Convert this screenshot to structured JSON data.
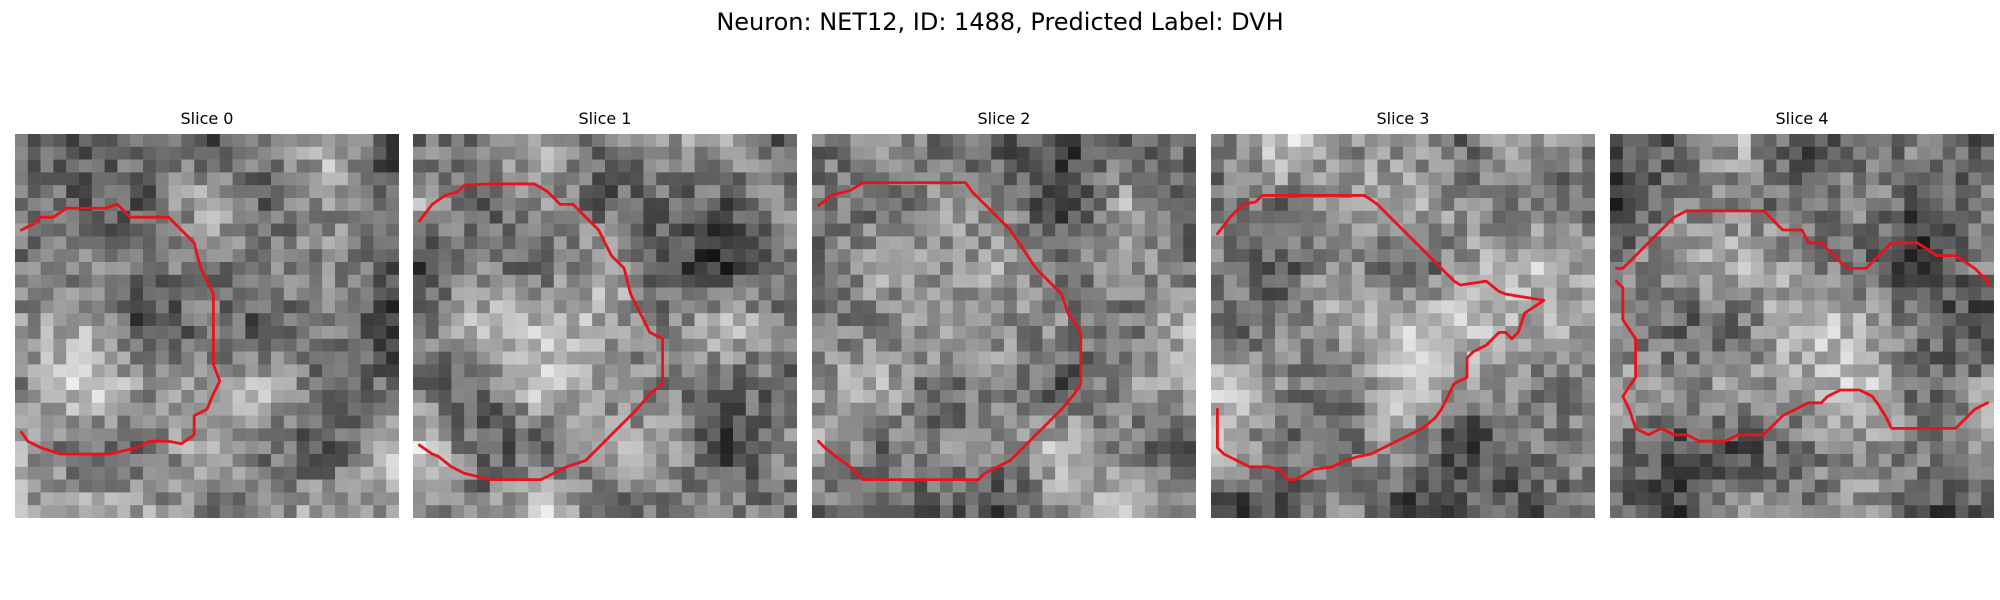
{
  "figure": {
    "title": "Neuron: NET12, ID: 1488, Predicted Label: DVH"
  },
  "image_grid": {
    "rows": 30,
    "cols": 30,
    "colormap": "grayscale",
    "content": "noisy grayscale electron-microscopy cell crops"
  },
  "contour_color": "#e8131b",
  "slices": [
    {
      "label": "Slice 0",
      "seed": 11,
      "contour": [
        [
          0.5,
          7.5
        ],
        [
          1.5,
          7
        ],
        [
          2,
          6.5
        ],
        [
          3,
          6.5
        ],
        [
          4,
          5.8
        ],
        [
          5,
          5.8
        ],
        [
          6,
          5.8
        ],
        [
          7,
          5.8
        ],
        [
          8,
          5.5
        ],
        [
          9,
          6.5
        ],
        [
          10,
          6.5
        ],
        [
          12,
          6.5
        ],
        [
          13,
          7.5
        ],
        [
          14,
          8.5
        ],
        [
          14.5,
          10.5
        ],
        [
          15.5,
          12.5
        ],
        [
          15.5,
          18
        ],
        [
          16,
          19.3
        ],
        [
          15.5,
          20.3
        ],
        [
          15,
          21.5
        ],
        [
          14,
          22
        ],
        [
          14,
          23.5
        ],
        [
          13,
          24.2
        ],
        [
          12,
          24
        ],
        [
          10.5,
          24
        ],
        [
          9.5,
          24.5
        ],
        [
          7.5,
          25
        ],
        [
          5,
          25
        ],
        [
          3.5,
          25
        ],
        [
          2,
          24.5
        ],
        [
          1,
          24
        ],
        [
          0.5,
          23.3
        ]
      ]
    },
    {
      "label": "Slice 1",
      "seed": 23,
      "contour": [
        [
          0.5,
          6.8
        ],
        [
          1.5,
          5.5
        ],
        [
          2.5,
          4.8
        ],
        [
          3.5,
          4.5
        ],
        [
          4,
          4
        ],
        [
          6,
          3.9
        ],
        [
          9.5,
          3.9
        ],
        [
          10.5,
          4.5
        ],
        [
          11.5,
          5.5
        ],
        [
          12.5,
          5.5
        ],
        [
          13.5,
          6.5
        ],
        [
          14.5,
          7.5
        ],
        [
          15.5,
          9.5
        ],
        [
          16.5,
          10.5
        ],
        [
          17,
          12.5
        ],
        [
          18,
          14.5
        ],
        [
          18.5,
          15.5
        ],
        [
          19.5,
          16
        ],
        [
          19.5,
          19.5
        ],
        [
          18.5,
          20.3
        ],
        [
          17.5,
          21.5
        ],
        [
          16.5,
          22.5
        ],
        [
          15.5,
          23.5
        ],
        [
          14.5,
          24.5
        ],
        [
          13.5,
          25.5
        ],
        [
          12,
          26
        ],
        [
          11,
          26.5
        ],
        [
          10,
          27
        ],
        [
          8,
          27
        ],
        [
          6,
          27
        ],
        [
          4,
          26.5
        ],
        [
          3,
          26
        ],
        [
          2,
          25.2
        ],
        [
          1.5,
          25
        ],
        [
          0.5,
          24.3
        ]
      ]
    },
    {
      "label": "Slice 2",
      "seed": 37,
      "contour": [
        [
          0.5,
          5.6
        ],
        [
          1.5,
          4.8
        ],
        [
          3,
          4.4
        ],
        [
          4,
          3.8
        ],
        [
          6,
          3.8
        ],
        [
          9,
          3.8
        ],
        [
          12,
          3.8
        ],
        [
          12.5,
          4.5
        ],
        [
          13.5,
          5.5
        ],
        [
          14.5,
          6.5
        ],
        [
          15.5,
          7.5
        ],
        [
          16.5,
          9
        ],
        [
          17.5,
          10.5
        ],
        [
          18.5,
          11.5
        ],
        [
          19.5,
          12.5
        ],
        [
          20,
          14
        ],
        [
          21,
          15.5
        ],
        [
          21,
          17.5
        ],
        [
          21,
          19.5
        ],
        [
          20.5,
          20.3
        ],
        [
          19.5,
          21.5
        ],
        [
          18.5,
          22.5
        ],
        [
          17.5,
          23.5
        ],
        [
          16.5,
          24.5
        ],
        [
          15.5,
          25.5
        ],
        [
          14.5,
          26
        ],
        [
          13.5,
          26.5
        ],
        [
          13,
          27
        ],
        [
          10,
          27
        ],
        [
          7,
          27
        ],
        [
          4,
          27
        ],
        [
          3,
          26
        ],
        [
          2,
          25.3
        ],
        [
          1,
          24.5
        ],
        [
          0.5,
          24
        ]
      ]
    },
    {
      "label": "Slice 3",
      "seed": 51,
      "contour": [
        [
          0.5,
          7.8
        ],
        [
          1.5,
          6.5
        ],
        [
          2.5,
          5.5
        ],
        [
          3.5,
          5.3
        ],
        [
          4,
          4.8
        ],
        [
          6,
          4.8
        ],
        [
          9,
          4.8
        ],
        [
          12,
          4.8
        ],
        [
          13,
          5.5
        ],
        [
          14,
          6.5
        ],
        [
          15,
          7.5
        ],
        [
          16,
          8.5
        ],
        [
          17,
          9.5
        ],
        [
          18,
          10.5
        ],
        [
          19,
          11.5
        ],
        [
          19.5,
          11.8
        ],
        [
          21.5,
          11.5
        ],
        [
          22.5,
          12.3
        ],
        [
          23,
          12.5
        ],
        [
          26,
          13
        ],
        [
          24.5,
          14
        ],
        [
          24,
          15.5
        ],
        [
          23.5,
          16
        ],
        [
          23,
          15.5
        ],
        [
          22.5,
          15.5
        ],
        [
          21.5,
          16.5
        ],
        [
          20.5,
          17
        ],
        [
          20,
          17.5
        ],
        [
          20,
          19
        ],
        [
          19,
          19.5
        ],
        [
          18.5,
          20.5
        ],
        [
          18,
          21.5
        ],
        [
          17.5,
          22.2
        ],
        [
          16.5,
          23
        ],
        [
          15.5,
          23.5
        ],
        [
          14.5,
          24
        ],
        [
          13.5,
          24.5
        ],
        [
          12.5,
          25
        ],
        [
          11.5,
          25.2
        ],
        [
          10.5,
          25.5
        ],
        [
          9.5,
          26
        ],
        [
          8,
          26.2
        ],
        [
          7,
          26.8
        ],
        [
          6.5,
          27
        ],
        [
          6,
          27
        ],
        [
          5.5,
          26.3
        ],
        [
          4.5,
          26
        ],
        [
          3,
          26
        ],
        [
          2,
          25.5
        ],
        [
          1,
          25
        ],
        [
          0.5,
          24.5
        ],
        [
          0.5,
          21.5
        ]
      ]
    },
    {
      "label": "Slice 4",
      "seed": 67,
      "contour": [
        [
          0.5,
          10.5
        ],
        [
          1,
          10.5
        ],
        [
          2,
          9.5
        ],
        [
          3,
          8.5
        ],
        [
          4,
          7.5
        ],
        [
          5,
          6.5
        ],
        [
          6,
          6
        ],
        [
          8,
          6
        ],
        [
          10,
          6
        ],
        [
          12,
          6
        ],
        [
          12.5,
          6.5
        ],
        [
          13.5,
          7.5
        ],
        [
          15,
          7.5
        ],
        [
          15.5,
          8.5
        ],
        [
          16.5,
          8.5
        ],
        [
          17.5,
          9.5
        ],
        [
          18.5,
          10.5
        ],
        [
          20,
          10.5
        ],
        [
          20.5,
          10
        ],
        [
          21.5,
          9
        ],
        [
          22,
          8.5
        ],
        [
          24,
          8.5
        ],
        [
          24.8,
          9
        ],
        [
          25.5,
          9.5
        ],
        [
          27,
          9.5
        ],
        [
          28.5,
          10.5
        ],
        [
          29.5,
          11.5
        ],
        [
          29.5,
          11.8
        ]
      ]
    }
  ],
  "slice4_lower_contour": [
    [
      0.5,
      11.5
    ],
    [
      1,
      12
    ],
    [
      1,
      14.5
    ],
    [
      2,
      16
    ],
    [
      2,
      19
    ],
    [
      1,
      20.5
    ],
    [
      1.5,
      21.5
    ],
    [
      2,
      23
    ],
    [
      3,
      23.5
    ],
    [
      4,
      23
    ],
    [
      5,
      23.5
    ],
    [
      6,
      23.5
    ],
    [
      7,
      24
    ],
    [
      9,
      24
    ],
    [
      10,
      23.5
    ],
    [
      12,
      23.5
    ],
    [
      12.5,
      23
    ],
    [
      13.5,
      22
    ],
    [
      14.5,
      21.5
    ],
    [
      15.5,
      21
    ],
    [
      16.5,
      21
    ],
    [
      17,
      20.5
    ],
    [
      18,
      20
    ],
    [
      19.5,
      20
    ],
    [
      20.5,
      20.5
    ],
    [
      21,
      21.2
    ],
    [
      21.5,
      22
    ],
    [
      22,
      23
    ],
    [
      26,
      23
    ],
    [
      27,
      23
    ],
    [
      28.5,
      21.5
    ],
    [
      29.5,
      21
    ]
  ]
}
